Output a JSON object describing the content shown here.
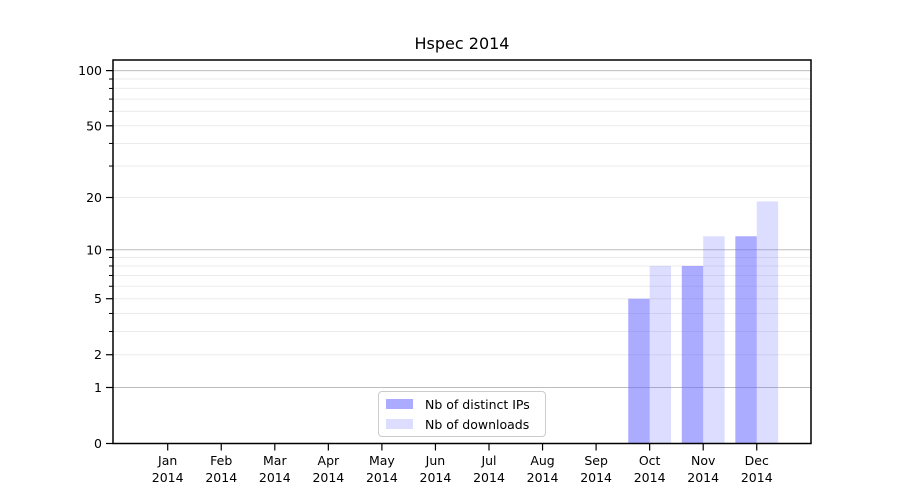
{
  "figure": {
    "background": "#ffffff"
  },
  "chart_data": {
    "type": "bar",
    "title": "Hspec 2014",
    "categories": [
      "Jan 2014",
      "Feb 2014",
      "Mar 2014",
      "Apr 2014",
      "May 2014",
      "Jun 2014",
      "Jul 2014",
      "Aug 2014",
      "Sep 2014",
      "Oct 2014",
      "Nov 2014",
      "Dec 2014"
    ],
    "series": [
      {
        "name": "Nb of distinct IPs",
        "color": "rgba(102,102,255,0.55)",
        "values": [
          0,
          0,
          0,
          0,
          0,
          0,
          0,
          0,
          0,
          5,
          8,
          12
        ]
      },
      {
        "name": "Nb of downloads",
        "color": "rgba(102,102,255,0.22)",
        "values": [
          0,
          0,
          0,
          0,
          0,
          0,
          0,
          0,
          0,
          8,
          12,
          19
        ]
      }
    ],
    "xlabel": "",
    "ylabel": "",
    "yscale": "log10(value+1)",
    "ylim": [
      0,
      114
    ],
    "y_tick_values": [
      0,
      1,
      2,
      5,
      10,
      20,
      50,
      100
    ],
    "y_major_grid": [
      1,
      10,
      100
    ],
    "y_minor_grid": [
      2,
      3,
      4,
      5,
      6,
      7,
      8,
      9,
      20,
      30,
      40,
      50,
      60,
      70,
      80,
      90
    ],
    "grid": true,
    "legend_position": "lower center"
  },
  "colors": {
    "grid_major": "#bdbdbd",
    "grid_minor": "#ebebeb",
    "spine": "#000000",
    "tick": "#000000",
    "text": "#000000",
    "legend_border": "#cccccc",
    "legend_bg": "#ffffff"
  }
}
